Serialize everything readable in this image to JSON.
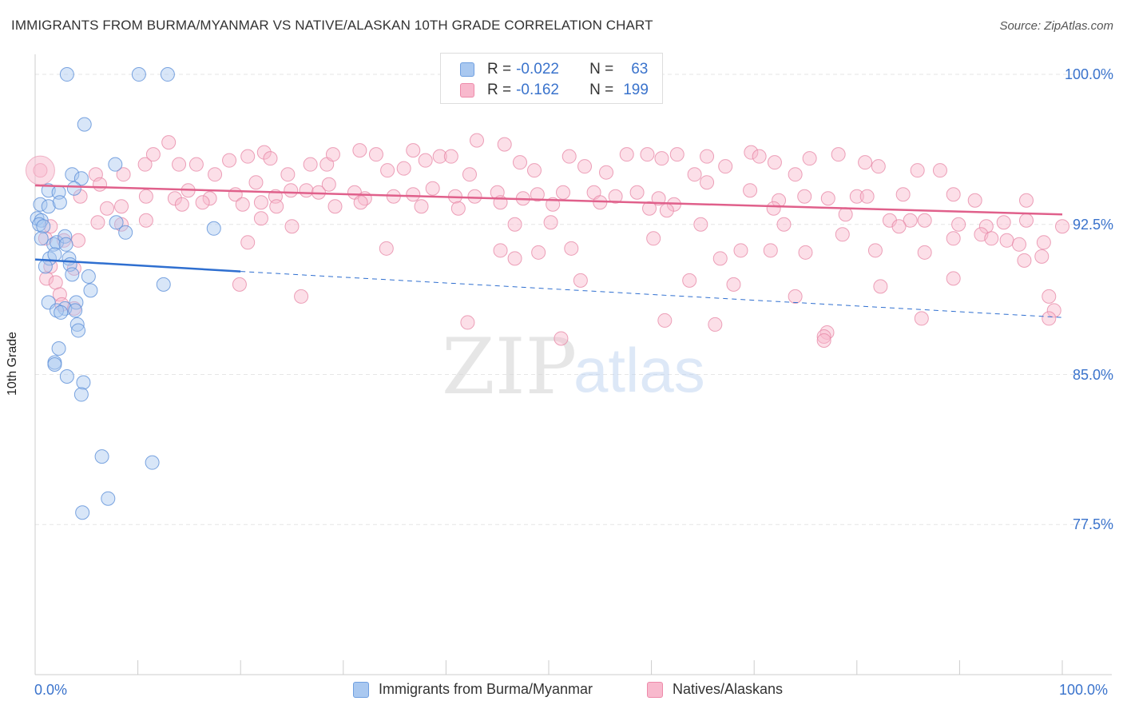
{
  "title": "IMMIGRANTS FROM BURMA/MYANMAR VS NATIVE/ALASKAN 10TH GRADE CORRELATION CHART",
  "source": "Source: ZipAtlas.com",
  "watermark": {
    "zip": "ZIP",
    "atlas": "atlas"
  },
  "legend": {
    "r_label": "R =",
    "n_label": "N =",
    "rows": [
      {
        "r": "-0.022",
        "n": "63",
        "fill": "#a9c8f0",
        "stroke": "#6f9fe0"
      },
      {
        "r": "-0.162",
        "n": "199",
        "fill": "#f8b9cd",
        "stroke": "#ee8aaa"
      }
    ]
  },
  "colors": {
    "blue_fill": "#a9c8f0",
    "blue_stroke": "#5b8fd8",
    "pink_fill": "#f8b9cd",
    "pink_stroke": "#e78aa8",
    "blue_line": "#2f6fd0",
    "pink_line": "#e0608b",
    "tick_text": "#3a73cc",
    "grid": "#e6e6e6"
  },
  "chart_data": {
    "type": "scatter",
    "title": "IMMIGRANTS FROM BURMA/MYANMAR VS NATIVE/ALASKAN 10TH GRADE CORRELATION CHART",
    "xlabel": "",
    "ylabel": "10th Grade",
    "xlim": [
      0,
      100
    ],
    "ylim": [
      70,
      101
    ],
    "x_tick_labels": [
      "0.0%",
      "100.0%"
    ],
    "y_ticks": [
      77.5,
      85.0,
      92.5,
      100.0
    ],
    "y_tick_labels": [
      "77.5%",
      "85.0%",
      "92.5%",
      "100.0%"
    ],
    "grid": true,
    "legend_position": "top-center",
    "series": [
      {
        "name": "Immigrants from Burma/Myanmar",
        "r": -0.022,
        "n": 63,
        "trend": {
          "x": [
            0,
            20
          ],
          "y": [
            90.75,
            90.15
          ],
          "dashed_to": {
            "x": 100,
            "y": 87.85
          }
        },
        "points": [
          [
            3.1,
            100.0
          ],
          [
            10.1,
            100.0
          ],
          [
            12.9,
            100.0
          ],
          [
            4.8,
            97.5
          ],
          [
            7.8,
            95.5
          ],
          [
            3.6,
            95.0
          ],
          [
            4.5,
            94.8
          ],
          [
            3.8,
            94.3
          ],
          [
            1.3,
            94.2
          ],
          [
            2.3,
            94.1
          ],
          [
            0.5,
            93.5
          ],
          [
            1.3,
            93.4
          ],
          [
            2.4,
            93.6
          ],
          [
            0.2,
            92.8
          ],
          [
            0.6,
            92.7
          ],
          [
            0.4,
            92.5
          ],
          [
            0.8,
            92.4
          ],
          [
            7.9,
            92.6
          ],
          [
            17.4,
            92.3
          ],
          [
            8.8,
            92.1
          ],
          [
            0.6,
            91.8
          ],
          [
            1.8,
            91.5
          ],
          [
            2.1,
            91.6
          ],
          [
            2.9,
            91.9
          ],
          [
            3.0,
            91.5
          ],
          [
            1.4,
            90.8
          ],
          [
            1.9,
            91.0
          ],
          [
            3.3,
            90.8
          ],
          [
            1.0,
            90.4
          ],
          [
            3.4,
            90.5
          ],
          [
            3.6,
            90.0
          ],
          [
            5.2,
            89.9
          ],
          [
            12.5,
            89.5
          ],
          [
            5.4,
            89.2
          ],
          [
            1.3,
            88.6
          ],
          [
            4.0,
            88.6
          ],
          [
            2.9,
            88.3
          ],
          [
            2.1,
            88.2
          ],
          [
            2.5,
            88.1
          ],
          [
            3.9,
            88.2
          ],
          [
            4.1,
            87.5
          ],
          [
            4.2,
            87.2
          ],
          [
            2.3,
            86.3
          ],
          [
            1.9,
            85.6
          ],
          [
            1.9,
            85.5
          ],
          [
            3.1,
            84.9
          ],
          [
            4.7,
            84.6
          ],
          [
            4.5,
            84.0
          ],
          [
            6.5,
            80.9
          ],
          [
            11.4,
            80.6
          ],
          [
            7.1,
            78.8
          ],
          [
            4.6,
            78.1
          ]
        ]
      },
      {
        "name": "Natives/Alaskans",
        "r": -0.162,
        "n": 199,
        "trend": {
          "x": [
            0,
            100
          ],
          "y": [
            94.45,
            93.0
          ]
        },
        "points": [
          [
            0.5,
            95.2
          ],
          [
            5.9,
            95.0
          ],
          [
            8.6,
            95.0
          ],
          [
            10.7,
            95.5
          ],
          [
            11.5,
            96.0
          ],
          [
            13.0,
            96.6
          ],
          [
            14.0,
            95.5
          ],
          [
            15.7,
            95.5
          ],
          [
            17.5,
            95.0
          ],
          [
            18.9,
            95.7
          ],
          [
            20.7,
            95.9
          ],
          [
            22.3,
            96.1
          ],
          [
            22.9,
            95.8
          ],
          [
            24.6,
            95.0
          ],
          [
            26.8,
            95.5
          ],
          [
            28.4,
            95.5
          ],
          [
            29.0,
            96.0
          ],
          [
            31.6,
            96.2
          ],
          [
            33.2,
            96.0
          ],
          [
            34.3,
            95.2
          ],
          [
            35.9,
            95.3
          ],
          [
            36.8,
            96.2
          ],
          [
            38.0,
            95.7
          ],
          [
            39.4,
            95.9
          ],
          [
            40.5,
            95.9
          ],
          [
            42.3,
            95.0
          ],
          [
            43.0,
            96.7
          ],
          [
            45.7,
            96.5
          ],
          [
            47.2,
            95.6
          ],
          [
            48.6,
            95.2
          ],
          [
            52.0,
            95.9
          ],
          [
            53.5,
            95.4
          ],
          [
            55.6,
            95.1
          ],
          [
            57.6,
            96.0
          ],
          [
            59.6,
            96.0
          ],
          [
            61.0,
            95.8
          ],
          [
            62.5,
            96.0
          ],
          [
            64.2,
            95.0
          ],
          [
            65.4,
            95.9
          ],
          [
            67.2,
            95.4
          ],
          [
            69.7,
            96.1
          ],
          [
            70.5,
            95.9
          ],
          [
            72.0,
            95.6
          ],
          [
            74.0,
            95.0
          ],
          [
            75.4,
            95.8
          ],
          [
            78.2,
            96.0
          ],
          [
            80.8,
            95.6
          ],
          [
            82.1,
            95.4
          ],
          [
            85.9,
            95.2
          ],
          [
            88.1,
            95.2
          ],
          [
            4.4,
            93.9
          ],
          [
            6.3,
            94.5
          ],
          [
            10.8,
            93.9
          ],
          [
            13.6,
            93.8
          ],
          [
            14.9,
            94.2
          ],
          [
            17.0,
            93.8
          ],
          [
            19.5,
            94.0
          ],
          [
            21.5,
            94.6
          ],
          [
            23.4,
            93.9
          ],
          [
            24.9,
            94.2
          ],
          [
            26.4,
            94.2
          ],
          [
            27.6,
            94.1
          ],
          [
            28.6,
            94.5
          ],
          [
            31.1,
            94.1
          ],
          [
            32.1,
            93.8
          ],
          [
            34.9,
            93.9
          ],
          [
            36.8,
            94.0
          ],
          [
            38.7,
            94.3
          ],
          [
            40.9,
            93.9
          ],
          [
            42.8,
            93.9
          ],
          [
            45.0,
            94.1
          ],
          [
            47.5,
            93.8
          ],
          [
            48.9,
            94.0
          ],
          [
            51.4,
            94.1
          ],
          [
            54.4,
            94.1
          ],
          [
            56.5,
            93.9
          ],
          [
            58.6,
            94.1
          ],
          [
            60.7,
            93.8
          ],
          [
            62.2,
            93.5
          ],
          [
            65.4,
            94.6
          ],
          [
            69.6,
            94.2
          ],
          [
            72.4,
            93.7
          ],
          [
            74.9,
            93.9
          ],
          [
            77.2,
            93.8
          ],
          [
            80.0,
            93.9
          ],
          [
            81.0,
            93.9
          ],
          [
            84.5,
            94.0
          ],
          [
            89.4,
            94.0
          ],
          [
            91.5,
            93.7
          ],
          [
            96.5,
            93.7
          ],
          [
            7.0,
            93.3
          ],
          [
            8.4,
            93.4
          ],
          [
            14.3,
            93.5
          ],
          [
            16.3,
            93.6
          ],
          [
            20.2,
            93.5
          ],
          [
            22.0,
            93.6
          ],
          [
            23.5,
            93.4
          ],
          [
            29.2,
            93.4
          ],
          [
            31.7,
            93.6
          ],
          [
            37.6,
            93.4
          ],
          [
            41.2,
            93.3
          ],
          [
            45.3,
            93.6
          ],
          [
            50.4,
            93.5
          ],
          [
            55.0,
            93.6
          ],
          [
            59.8,
            93.3
          ],
          [
            61.5,
            93.2
          ],
          [
            71.9,
            93.3
          ],
          [
            78.9,
            93.0
          ],
          [
            83.2,
            92.7
          ],
          [
            85.2,
            92.7
          ],
          [
            6.1,
            92.6
          ],
          [
            8.4,
            92.5
          ],
          [
            10.8,
            92.7
          ],
          [
            22.0,
            92.8
          ],
          [
            25.0,
            92.4
          ],
          [
            46.7,
            92.5
          ],
          [
            50.2,
            92.6
          ],
          [
            64.8,
            92.5
          ],
          [
            72.9,
            92.5
          ],
          [
            84.1,
            92.4
          ],
          [
            86.6,
            92.7
          ],
          [
            89.9,
            92.5
          ],
          [
            92.6,
            92.4
          ],
          [
            94.3,
            92.6
          ],
          [
            96.5,
            92.7
          ],
          [
            100.0,
            92.4
          ],
          [
            1.5,
            92.4
          ],
          [
            1.0,
            91.8
          ],
          [
            2.8,
            91.7
          ],
          [
            4.2,
            91.7
          ],
          [
            20.7,
            91.6
          ],
          [
            34.2,
            91.3
          ],
          [
            60.2,
            91.8
          ],
          [
            78.6,
            92.0
          ],
          [
            89.4,
            91.8
          ],
          [
            92.1,
            92.0
          ],
          [
            93.1,
            91.8
          ],
          [
            94.6,
            91.7
          ],
          [
            95.8,
            91.5
          ],
          [
            98.2,
            91.6
          ],
          [
            45.3,
            91.2
          ],
          [
            49.0,
            91.1
          ],
          [
            52.2,
            91.3
          ],
          [
            68.7,
            91.2
          ],
          [
            71.6,
            91.2
          ],
          [
            75.0,
            91.1
          ],
          [
            81.8,
            91.2
          ],
          [
            86.6,
            91.1
          ],
          [
            98.0,
            90.9
          ],
          [
            1.5,
            90.4
          ],
          [
            3.8,
            90.3
          ],
          [
            46.7,
            90.8
          ],
          [
            66.7,
            90.8
          ],
          [
            96.3,
            90.7
          ],
          [
            1.1,
            89.8
          ],
          [
            2.0,
            89.6
          ],
          [
            19.9,
            89.5
          ],
          [
            53.1,
            89.7
          ],
          [
            63.7,
            89.7
          ],
          [
            68.0,
            89.5
          ],
          [
            82.3,
            89.4
          ],
          [
            89.4,
            89.8
          ],
          [
            2.4,
            89.0
          ],
          [
            25.9,
            88.9
          ],
          [
            74.0,
            88.9
          ],
          [
            98.7,
            88.9
          ],
          [
            2.6,
            88.5
          ],
          [
            3.8,
            88.3
          ],
          [
            42.1,
            87.6
          ],
          [
            61.3,
            87.7
          ],
          [
            66.2,
            87.5
          ],
          [
            86.3,
            87.8
          ],
          [
            99.2,
            88.2
          ],
          [
            98.7,
            87.8
          ],
          [
            51.2,
            86.8
          ],
          [
            77.1,
            87.1
          ],
          [
            76.8,
            86.9
          ],
          [
            76.8,
            86.7
          ]
        ]
      }
    ]
  }
}
